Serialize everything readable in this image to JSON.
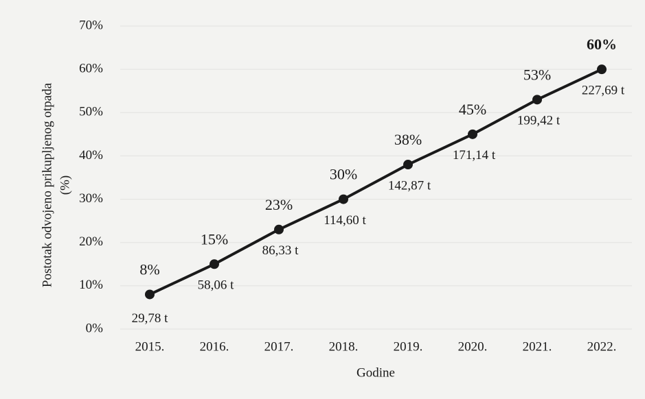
{
  "chart_data": {
    "type": "line",
    "y_label": [
      "Postotak odvojeno prikupljenog otpada",
      "(%)"
    ],
    "x_label": "Godine",
    "categories": [
      "2015.",
      "2016.",
      "2017.",
      "2018.",
      "2019.",
      "2020.",
      "2021.",
      "2022."
    ],
    "values": [
      8,
      15,
      23,
      30,
      38,
      45,
      53,
      60
    ],
    "value_labels": [
      "8%",
      "15%",
      "23%",
      "30%",
      "38%",
      "45%",
      "53%",
      "60%"
    ],
    "tonnage_labels": [
      "29,78 t",
      "58,06 t",
      "86,33 t",
      "114,60 t",
      "142,87 t",
      "171,14 t",
      "199,42 t",
      "227,69 t"
    ],
    "color": "#1a1a1a",
    "ylim": [
      0,
      70
    ],
    "yticks": [
      {
        "value": 0,
        "label": "0%"
      },
      {
        "value": 10,
        "label": "10%"
      },
      {
        "value": 20,
        "label": "20%"
      },
      {
        "value": 30,
        "label": "30%"
      },
      {
        "value": 40,
        "label": "40%"
      },
      {
        "value": 50,
        "label": "50%"
      },
      {
        "value": 60,
        "label": "60%"
      },
      {
        "value": 70,
        "label": "70%"
      }
    ],
    "grid": true
  }
}
